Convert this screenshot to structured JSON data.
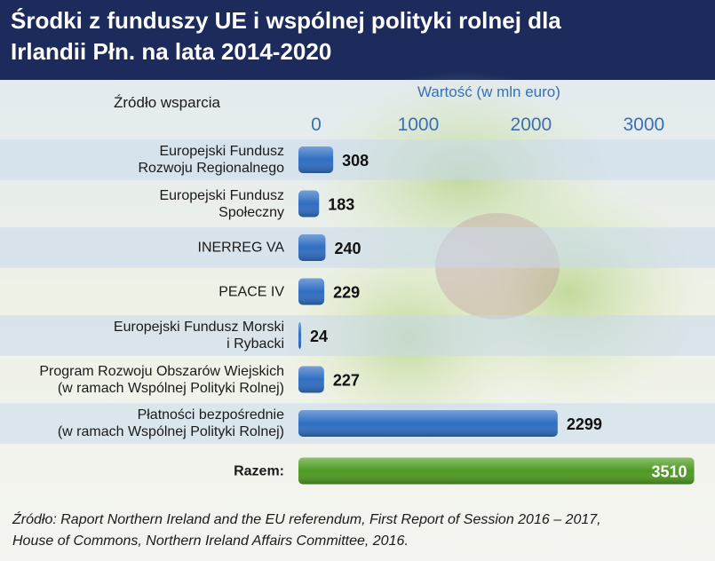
{
  "chart_data": {
    "type": "bar",
    "orientation": "horizontal",
    "title": "Środki z funduszy UE i wspólnej polityki rolnej dla\nIrlandii Płn. na lata 2014-2020",
    "category_axis_title": "Źródło wsparcia",
    "value_axis_title": "Wartość (w mln euro)",
    "categories": [
      "Europejski Fundusz\nRozwoju Regionalnego",
      "Europejski Fundusz\nSpołeczny",
      "INERREG VA",
      "PEACE IV",
      "Europejski Fundusz Morski\ni Rybacki",
      "Program Rozwoju Obszarów Wiejskich\n(w ramach Wspólnej Polityki Rolnej)",
      "Płatności bezpośrednie\n(w ramach Wspólnej Polityki Rolnej)",
      "Razem:"
    ],
    "values": [
      308,
      183,
      240,
      229,
      24,
      227,
      2299,
      3510
    ],
    "colors": [
      "#2f6ec2",
      "#2f6ec2",
      "#2f6ec2",
      "#2f6ec2",
      "#2f6ec2",
      "#2f6ec2",
      "#2f6ec2",
      "#4e9a22"
    ],
    "xlim": [
      0,
      3600
    ],
    "xticks": [
      0,
      1000,
      2000,
      3000
    ],
    "source": "Źródło: Raport Northern Ireland and the EU referendum, First Report of Session 2016 – 2017,\nHouse of Commons, Northern Ireland Affairs Committee, 2016."
  }
}
